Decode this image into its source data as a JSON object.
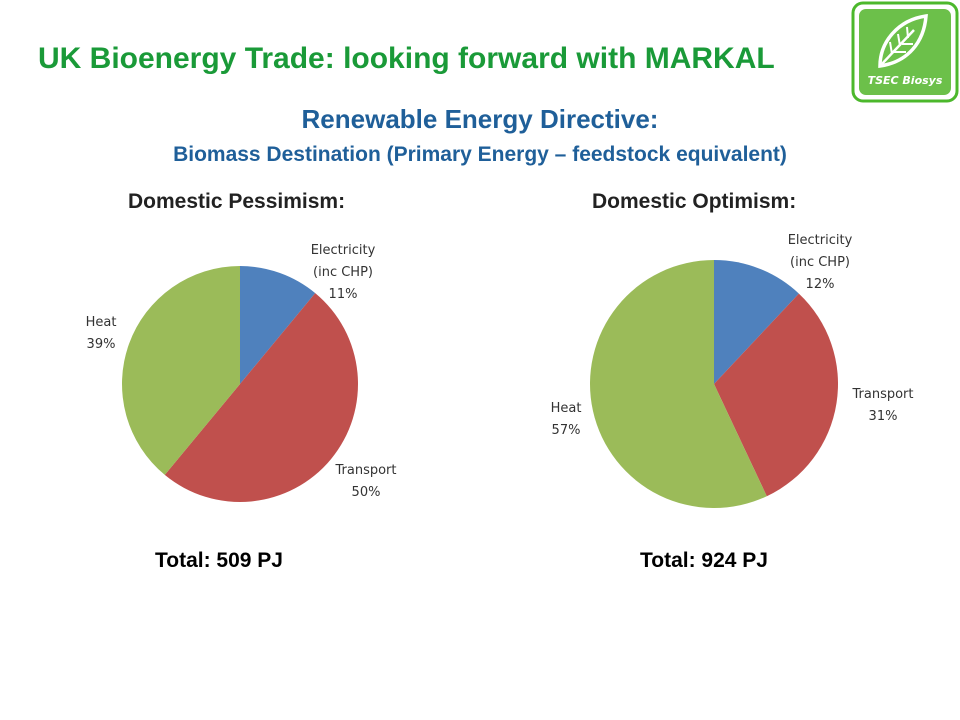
{
  "slide": {
    "title": "UK Bioenergy Trade: looking forward with MARKAL",
    "subtitle": "Renewable Energy Directive:",
    "subtitle2": "Biomass Destination (Primary Energy – feedstock equivalent)",
    "logo_text": "TSEC Biosys"
  },
  "colors": {
    "electricity": "#4f81bd",
    "transport": "#c0504d",
    "heat": "#9bbb59",
    "title": "#1a9a38",
    "subtitle": "#1f5f99"
  },
  "chart_data": [
    {
      "type": "pie",
      "title": "Domestic Pessimism:",
      "total": "Total: 509 PJ",
      "slices": [
        {
          "name": "Electricity (inc CHP)",
          "label_lines": [
            "Electricity",
            "(inc CHP)",
            "11%"
          ],
          "value": 11
        },
        {
          "name": "Transport",
          "label_lines": [
            "Transport",
            "50%"
          ],
          "value": 50
        },
        {
          "name": "Heat",
          "label_lines": [
            "Heat",
            "39%"
          ],
          "value": 39
        }
      ]
    },
    {
      "type": "pie",
      "title": "Domestic Optimism:",
      "total": "Total: 924 PJ",
      "slices": [
        {
          "name": "Electricity (inc CHP)",
          "label_lines": [
            "Electricity",
            "(inc CHP)",
            "12%"
          ],
          "value": 12
        },
        {
          "name": "Transport",
          "label_lines": [
            "Transport",
            "31%"
          ],
          "value": 31
        },
        {
          "name": "Heat",
          "label_lines": [
            "Heat",
            "57%"
          ],
          "value": 57
        }
      ]
    }
  ]
}
